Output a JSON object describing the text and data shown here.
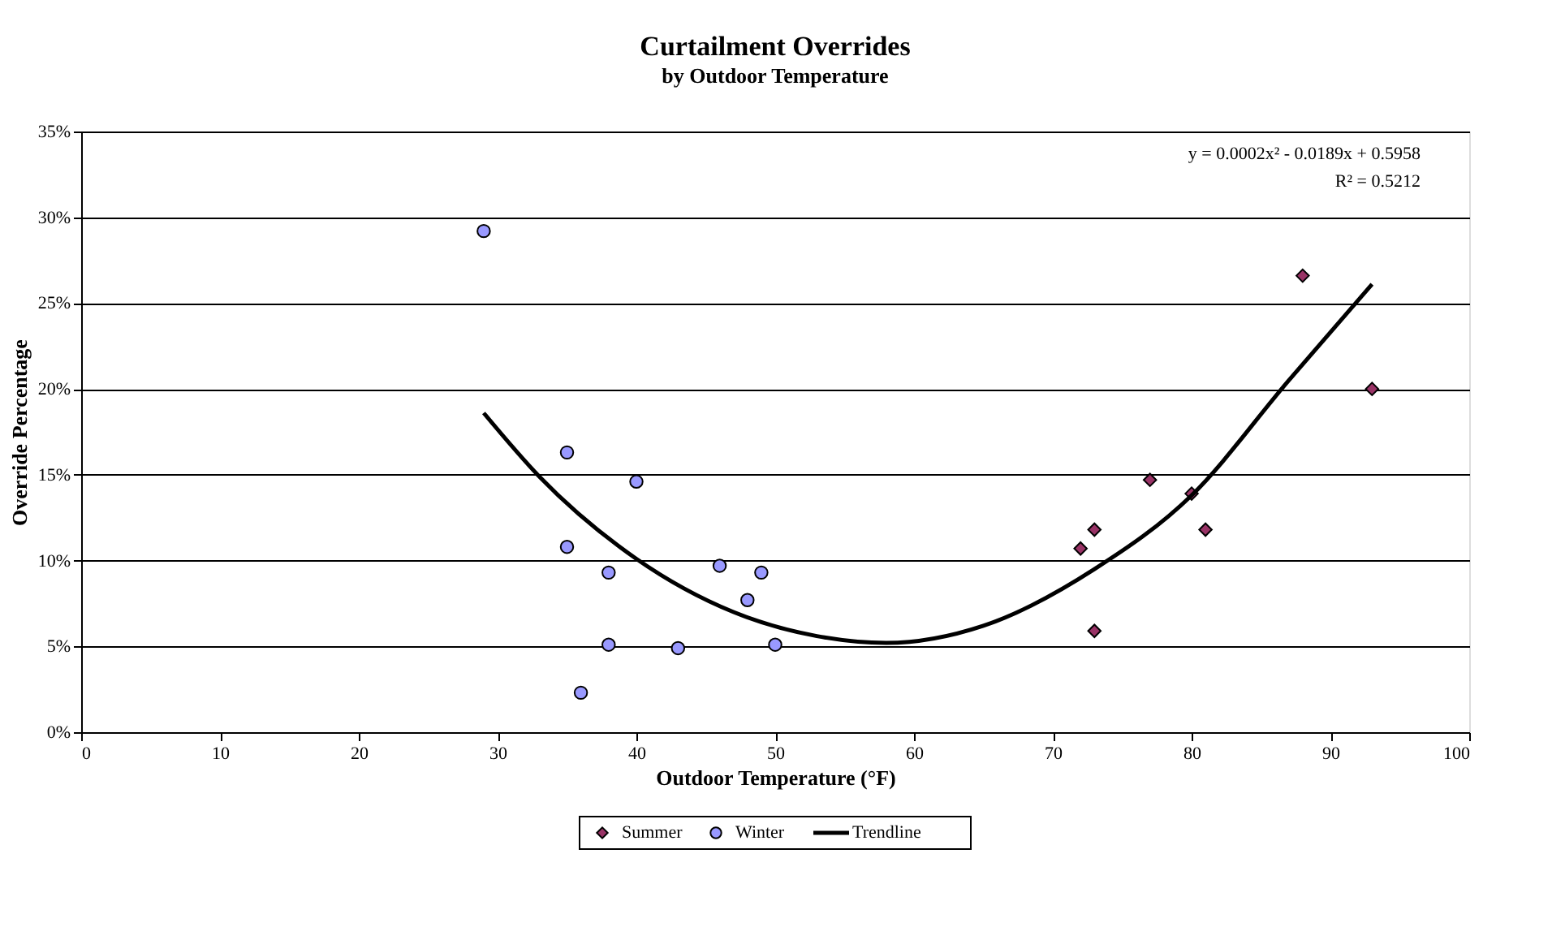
{
  "chart_data": {
    "type": "scatter",
    "title": "Curtailment Overrides",
    "subtitle": "by Outdoor Temperature",
    "xlabel": "Outdoor Temperature (°F)",
    "ylabel": "Override Percentage",
    "xlim": [
      0,
      100
    ],
    "xticks": [
      0,
      10,
      20,
      30,
      40,
      50,
      60,
      70,
      80,
      90,
      100
    ],
    "ylim": [
      0,
      35
    ],
    "yticks": [
      {
        "value": 0,
        "label": "0%"
      },
      {
        "value": 5,
        "label": "5%"
      },
      {
        "value": 10,
        "label": "10%"
      },
      {
        "value": 15,
        "label": "15%"
      },
      {
        "value": 20,
        "label": "20%"
      },
      {
        "value": 25,
        "label": "25%"
      },
      {
        "value": 30,
        "label": "30%"
      },
      {
        "value": 35,
        "label": "35%"
      }
    ],
    "grid": "y",
    "legend": "bottom",
    "series": [
      {
        "name": "Summer",
        "color": "#993366",
        "marker": "diamond",
        "x": [
          72,
          73,
          73,
          77,
          80,
          81,
          88,
          93
        ],
        "values": [
          10.7,
          11.8,
          5.9,
          14.7,
          13.9,
          11.8,
          26.6,
          20.0
        ]
      },
      {
        "name": "Winter",
        "color": "#9999ff",
        "marker": "circle",
        "x": [
          29,
          35,
          40,
          35,
          38,
          46,
          49,
          48,
          38,
          43,
          50,
          36
        ],
        "values": [
          29.2,
          16.3,
          14.6,
          10.8,
          9.3,
          9.7,
          9.3,
          7.7,
          5.1,
          4.9,
          5.1,
          2.3
        ]
      },
      {
        "name": "Trendline",
        "type": "line",
        "color": "#000000",
        "x": [
          29,
          33,
          40,
          47,
          53,
          58,
          65,
          73,
          80,
          87,
          93
        ],
        "values": [
          18.6,
          14.9,
          10.1,
          7.0,
          5.6,
          5.2,
          6.2,
          9.5,
          13.8,
          20.5,
          26.1
        ]
      }
    ],
    "annotations": [
      "y = 0.0002x² - 0.0189x + 0.5958",
      "R² = 0.5212"
    ]
  }
}
